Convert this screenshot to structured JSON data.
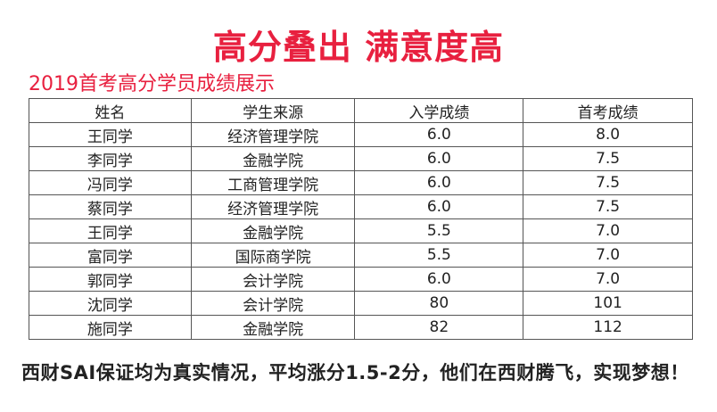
{
  "title": "高分叠出 满意度高",
  "subtitle": "2019首考高分学员成绩展示",
  "table": {
    "headers": [
      "姓名",
      "学生来源",
      "入学成绩",
      "首考成绩"
    ],
    "rows": [
      [
        "王同学",
        "经济管理学院",
        "6.0",
        "8.0"
      ],
      [
        "李同学",
        "金融学院",
        "6.0",
        "7.5"
      ],
      [
        "冯同学",
        "工商管理学院",
        "6.0",
        "7.5"
      ],
      [
        "蔡同学",
        "经济管理学院",
        "6.0",
        "7.5"
      ],
      [
        "王同学",
        "金融学院",
        "5.5",
        "7.0"
      ],
      [
        "富同学",
        "国际商学院",
        "5.5",
        "7.0"
      ],
      [
        "郭同学",
        "会计学院",
        "6.0",
        "7.0"
      ],
      [
        "沈同学",
        "会计学院",
        "80",
        "101"
      ],
      [
        "施同学",
        "金融学院",
        "82",
        "112"
      ]
    ]
  },
  "footer": "西财SAI保证均为真实情况，平均涨分1.5-2分，他们在西财腾飞，实现梦想！",
  "colors": {
    "accent": "#e8203f"
  }
}
